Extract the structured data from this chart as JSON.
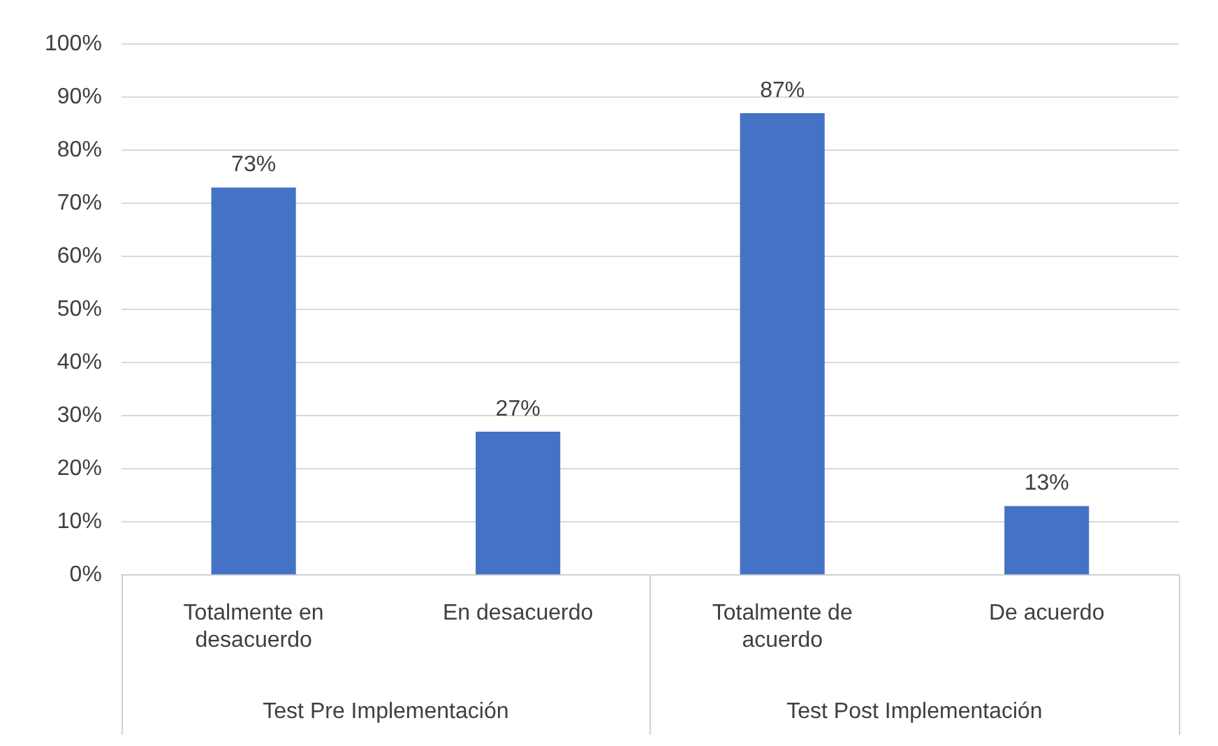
{
  "chart_data": {
    "type": "bar",
    "categories": [
      "Totalmente en desacuerdo",
      "En desacuerdo",
      "Totalmente de acuerdo",
      "De acuerdo"
    ],
    "values": [
      73,
      27,
      87,
      13
    ],
    "color": "#4472c4",
    "value_labels": [
      "73%",
      "27%",
      "87%",
      "13%"
    ],
    "ylim": [
      0,
      100
    ],
    "yticks": [
      {
        "value": 0,
        "label": "0%"
      },
      {
        "value": 10,
        "label": "10%"
      },
      {
        "value": 20,
        "label": "20%"
      },
      {
        "value": 30,
        "label": "30%"
      },
      {
        "value": 40,
        "label": "40%"
      },
      {
        "value": 50,
        "label": "50%"
      },
      {
        "value": 60,
        "label": "60%"
      },
      {
        "value": 70,
        "label": "70%"
      },
      {
        "value": 80,
        "label": "80%"
      },
      {
        "value": 90,
        "label": "90%"
      },
      {
        "value": 100,
        "label": "100%"
      }
    ],
    "grid": "y",
    "legend": false,
    "annotations": [
      "Test Pre Implementación",
      "Test Post Implementación"
    ]
  }
}
